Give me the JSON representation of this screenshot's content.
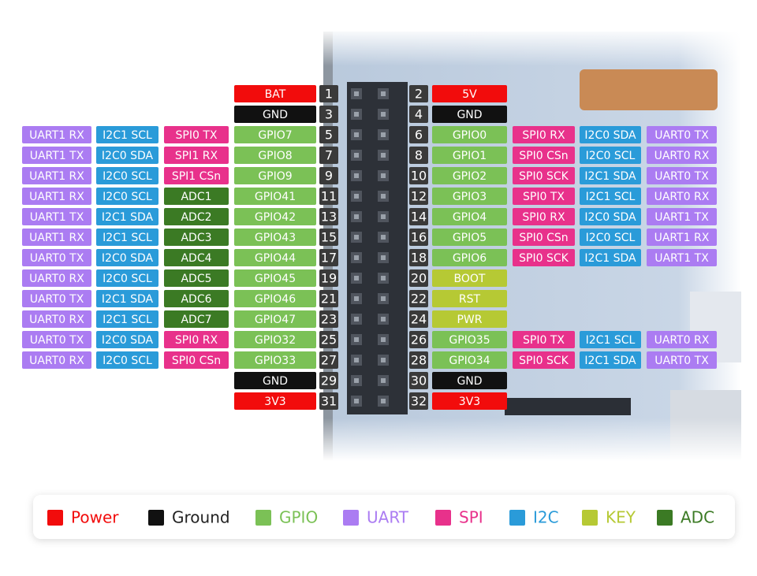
{
  "pins": [
    {
      "left": {
        "number": 1,
        "labels": [
          {
            "text": "BAT",
            "color": "#f20c0c"
          }
        ]
      },
      "right": {
        "number": 2,
        "labels": [
          {
            "text": "5V",
            "color": "#f20c0c"
          }
        ]
      }
    },
    {
      "left": {
        "number": 3,
        "labels": [
          {
            "text": "GND",
            "color": "#111111"
          }
        ]
      },
      "right": {
        "number": 4,
        "labels": [
          {
            "text": "GND",
            "color": "#111111"
          }
        ]
      }
    },
    {
      "left": {
        "number": 5,
        "labels": [
          {
            "text": "UART1 RX",
            "color": "#ab7cf2"
          },
          {
            "text": "I2C1 SCL",
            "color": "#2a9bd9"
          },
          {
            "text": "SPI0 TX",
            "color": "#e8318b"
          },
          {
            "text": "GPIO7",
            "color": "#7bc156"
          }
        ]
      },
      "right": {
        "number": 6,
        "labels": [
          {
            "text": "GPIO0",
            "color": "#7bc156"
          },
          {
            "text": "SPI0 RX",
            "color": "#e8318b"
          },
          {
            "text": "I2C0 SDA",
            "color": "#2a9bd9"
          },
          {
            "text": "UART0 TX",
            "color": "#ab7cf2"
          }
        ]
      }
    },
    {
      "left": {
        "number": 7,
        "labels": [
          {
            "text": "UART1 TX",
            "color": "#ab7cf2"
          },
          {
            "text": "I2C0 SDA",
            "color": "#2a9bd9"
          },
          {
            "text": "SPI1 RX",
            "color": "#e8318b"
          },
          {
            "text": "GPIO8",
            "color": "#7bc156"
          }
        ]
      },
      "right": {
        "number": 8,
        "labels": [
          {
            "text": "GPIO1",
            "color": "#7bc156"
          },
          {
            "text": "SPI0 CSn",
            "color": "#e8318b"
          },
          {
            "text": "I2C0 SCL",
            "color": "#2a9bd9"
          },
          {
            "text": "UART0 RX",
            "color": "#ab7cf2"
          }
        ]
      }
    },
    {
      "left": {
        "number": 9,
        "labels": [
          {
            "text": "UART1 RX",
            "color": "#ab7cf2"
          },
          {
            "text": "I2C0 SCL",
            "color": "#2a9bd9"
          },
          {
            "text": "SPI1 CSn",
            "color": "#e8318b"
          },
          {
            "text": "GPIO9",
            "color": "#7bc156"
          }
        ]
      },
      "right": {
        "number": 10,
        "labels": [
          {
            "text": "GPIO2",
            "color": "#7bc156"
          },
          {
            "text": "SPI0 SCK",
            "color": "#e8318b"
          },
          {
            "text": "I2C1 SDA",
            "color": "#2a9bd9"
          },
          {
            "text": "UART0 TX",
            "color": "#ab7cf2"
          }
        ]
      }
    },
    {
      "left": {
        "number": 11,
        "labels": [
          {
            "text": "UART1 RX",
            "color": "#ab7cf2"
          },
          {
            "text": "I2C0 SCL",
            "color": "#2a9bd9"
          },
          {
            "text": "ADC1",
            "color": "#3b7a24"
          },
          {
            "text": "GPIO41",
            "color": "#7bc156"
          }
        ]
      },
      "right": {
        "number": 12,
        "labels": [
          {
            "text": "GPIO3",
            "color": "#7bc156"
          },
          {
            "text": "SPI0 TX",
            "color": "#e8318b"
          },
          {
            "text": "I2C1 SCL",
            "color": "#2a9bd9"
          },
          {
            "text": "UART0 RX",
            "color": "#ab7cf2"
          }
        ]
      }
    },
    {
      "left": {
        "number": 13,
        "labels": [
          {
            "text": "UART1 TX",
            "color": "#ab7cf2"
          },
          {
            "text": "I2C1 SDA",
            "color": "#2a9bd9"
          },
          {
            "text": "ADC2",
            "color": "#3b7a24"
          },
          {
            "text": "GPIO42",
            "color": "#7bc156"
          }
        ]
      },
      "right": {
        "number": 14,
        "labels": [
          {
            "text": "GPIO4",
            "color": "#7bc156"
          },
          {
            "text": "SPI0 RX",
            "color": "#e8318b"
          },
          {
            "text": "I2C0 SDA",
            "color": "#2a9bd9"
          },
          {
            "text": "UART1 TX",
            "color": "#ab7cf2"
          }
        ]
      }
    },
    {
      "left": {
        "number": 15,
        "labels": [
          {
            "text": "UART1 RX",
            "color": "#ab7cf2"
          },
          {
            "text": "I2C1 SCL",
            "color": "#2a9bd9"
          },
          {
            "text": "ADC3",
            "color": "#3b7a24"
          },
          {
            "text": "GPIO43",
            "color": "#7bc156"
          }
        ]
      },
      "right": {
        "number": 16,
        "labels": [
          {
            "text": "GPIO5",
            "color": "#7bc156"
          },
          {
            "text": "SPI0 CSn",
            "color": "#e8318b"
          },
          {
            "text": "I2C0 SCL",
            "color": "#2a9bd9"
          },
          {
            "text": "UART1 RX",
            "color": "#ab7cf2"
          }
        ]
      }
    },
    {
      "left": {
        "number": 17,
        "labels": [
          {
            "text": "UART0 TX",
            "color": "#ab7cf2"
          },
          {
            "text": "I2C0 SDA",
            "color": "#2a9bd9"
          },
          {
            "text": "ADC4",
            "color": "#3b7a24"
          },
          {
            "text": "GPIO44",
            "color": "#7bc156"
          }
        ]
      },
      "right": {
        "number": 18,
        "labels": [
          {
            "text": "GPIO6",
            "color": "#7bc156"
          },
          {
            "text": "SPI0 SCK",
            "color": "#e8318b"
          },
          {
            "text": "I2C1 SDA",
            "color": "#2a9bd9"
          },
          {
            "text": "UART1 TX",
            "color": "#ab7cf2"
          }
        ]
      }
    },
    {
      "left": {
        "number": 19,
        "labels": [
          {
            "text": "UART0 RX",
            "color": "#ab7cf2"
          },
          {
            "text": "I2C0 SCL",
            "color": "#2a9bd9"
          },
          {
            "text": "ADC5",
            "color": "#3b7a24"
          },
          {
            "text": "GPIO45",
            "color": "#7bc156"
          }
        ]
      },
      "right": {
        "number": 20,
        "labels": [
          {
            "text": "BOOT",
            "color": "#b6c934"
          }
        ]
      }
    },
    {
      "left": {
        "number": 21,
        "labels": [
          {
            "text": "UART0 TX",
            "color": "#ab7cf2"
          },
          {
            "text": "I2C1 SDA",
            "color": "#2a9bd9"
          },
          {
            "text": "ADC6",
            "color": "#3b7a24"
          },
          {
            "text": "GPIO46",
            "color": "#7bc156"
          }
        ]
      },
      "right": {
        "number": 22,
        "labels": [
          {
            "text": "RST",
            "color": "#b6c934"
          }
        ]
      }
    },
    {
      "left": {
        "number": 23,
        "labels": [
          {
            "text": "UART0 RX",
            "color": "#ab7cf2"
          },
          {
            "text": "I2C1 SCL",
            "color": "#2a9bd9"
          },
          {
            "text": "ADC7",
            "color": "#3b7a24"
          },
          {
            "text": "GPIO47",
            "color": "#7bc156"
          }
        ]
      },
      "right": {
        "number": 24,
        "labels": [
          {
            "text": "PWR",
            "color": "#b6c934"
          }
        ]
      }
    },
    {
      "left": {
        "number": 25,
        "labels": [
          {
            "text": "UART0 TX",
            "color": "#ab7cf2"
          },
          {
            "text": "I2C0 SDA",
            "color": "#2a9bd9"
          },
          {
            "text": "SPI0 RX",
            "color": "#e8318b"
          },
          {
            "text": "GPIO32",
            "color": "#7bc156"
          }
        ]
      },
      "right": {
        "number": 26,
        "labels": [
          {
            "text": "GPIO35",
            "color": "#7bc156"
          },
          {
            "text": "SPI0 TX",
            "color": "#e8318b"
          },
          {
            "text": "I2C1 SCL",
            "color": "#2a9bd9"
          },
          {
            "text": "UART0 RX",
            "color": "#ab7cf2"
          }
        ]
      }
    },
    {
      "left": {
        "number": 27,
        "labels": [
          {
            "text": "UART0 RX",
            "color": "#ab7cf2"
          },
          {
            "text": "I2C0 SCL",
            "color": "#2a9bd9"
          },
          {
            "text": "SPI0 CSn",
            "color": "#e8318b"
          },
          {
            "text": "GPIO33",
            "color": "#7bc156"
          }
        ]
      },
      "right": {
        "number": 28,
        "labels": [
          {
            "text": "GPIO34",
            "color": "#7bc156"
          },
          {
            "text": "SPI0 SCK",
            "color": "#e8318b"
          },
          {
            "text": "I2C1 SDA",
            "color": "#2a9bd9"
          },
          {
            "text": "UART0 TX",
            "color": "#ab7cf2"
          }
        ]
      }
    },
    {
      "left": {
        "number": 29,
        "labels": [
          {
            "text": "GND",
            "color": "#111111"
          }
        ]
      },
      "right": {
        "number": 30,
        "labels": [
          {
            "text": "GND",
            "color": "#111111"
          }
        ]
      }
    },
    {
      "left": {
        "number": 31,
        "labels": [
          {
            "text": "3V3",
            "color": "#f20c0c"
          }
        ]
      },
      "right": {
        "number": 32,
        "labels": [
          {
            "text": "3V3",
            "color": "#f20c0c"
          }
        ]
      }
    }
  ],
  "legend": {
    "items": [
      {
        "text": "Power",
        "color": "#f20c0c",
        "text_color": "#f20c0c"
      },
      {
        "text": "Ground",
        "color": "#111111",
        "text_color": "#222222"
      },
      {
        "text": "GPIO",
        "color": "#7bc156",
        "text_color": "#7bc156"
      },
      {
        "text": "UART",
        "color": "#ab7cf2",
        "text_color": "#ab7cf2"
      },
      {
        "text": "SPI",
        "color": "#e8318b",
        "text_color": "#e8318b"
      },
      {
        "text": "I2C",
        "color": "#2a9bd9",
        "text_color": "#2a9bd9"
      },
      {
        "text": "KEY",
        "color": "#b6c934",
        "text_color": "#b6c934"
      },
      {
        "text": "ADC",
        "color": "#3b7a24",
        "text_color": "#3b7a24"
      }
    ]
  }
}
